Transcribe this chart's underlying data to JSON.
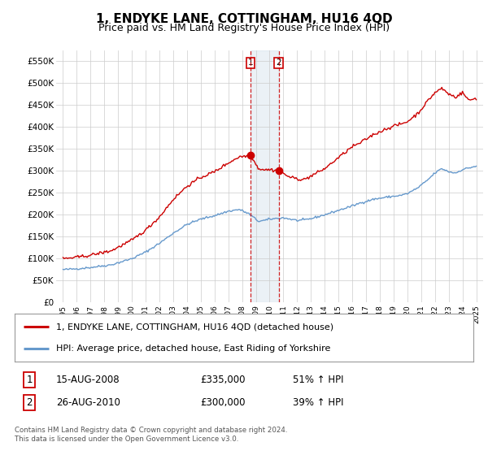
{
  "title": "1, ENDYKE LANE, COTTINGHAM, HU16 4QD",
  "subtitle": "Price paid vs. HM Land Registry's House Price Index (HPI)",
  "title_fontsize": 11,
  "subtitle_fontsize": 9,
  "line1_label": "1, ENDYKE LANE, COTTINGHAM, HU16 4QD (detached house)",
  "line2_label": "HPI: Average price, detached house, East Riding of Yorkshire",
  "line1_color": "#cc0000",
  "line2_color": "#6699cc",
  "transaction1_date": 2008.62,
  "transaction1_price": 335000,
  "transaction2_date": 2010.65,
  "transaction2_price": 300000,
  "table_row1": [
    "1",
    "15-AUG-2008",
    "£335,000",
    "51% ↑ HPI"
  ],
  "table_row2": [
    "2",
    "26-AUG-2010",
    "£300,000",
    "39% ↑ HPI"
  ],
  "footer": "Contains HM Land Registry data © Crown copyright and database right 2024.\nThis data is licensed under the Open Government Licence v3.0.",
  "ylim": [
    0,
    575000
  ],
  "yticks": [
    0,
    50000,
    100000,
    150000,
    200000,
    250000,
    300000,
    350000,
    400000,
    450000,
    500000,
    550000
  ],
  "ytick_labels": [
    "£0",
    "£50K",
    "£100K",
    "£150K",
    "£200K",
    "£250K",
    "£300K",
    "£350K",
    "£400K",
    "£450K",
    "£500K",
    "£550K"
  ],
  "xlim_start": 1994.5,
  "xlim_end": 2025.5,
  "xtick_years": [
    1995,
    1996,
    1997,
    1998,
    1999,
    2000,
    2001,
    2002,
    2003,
    2004,
    2005,
    2006,
    2007,
    2008,
    2009,
    2010,
    2011,
    2012,
    2013,
    2014,
    2015,
    2016,
    2017,
    2018,
    2019,
    2020,
    2021,
    2022,
    2023,
    2024,
    2025
  ],
  "background_color": "#ffffff",
  "grid_color": "#cccccc",
  "shade_color": "#c8d8e8",
  "shade_alpha": 0.35
}
